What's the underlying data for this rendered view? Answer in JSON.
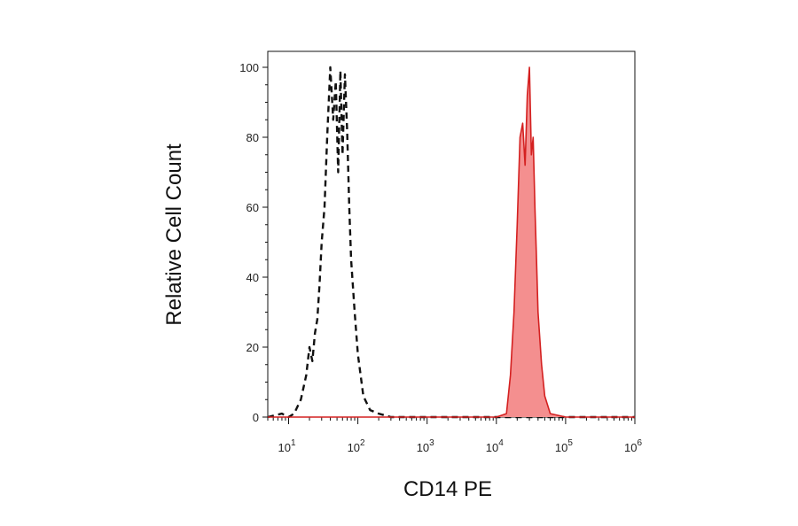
{
  "chart_data": {
    "type": "area",
    "xlabel": "CD14 PE",
    "ylabel": "Relative Cell Count",
    "x_scale": "log",
    "xlim": [
      5,
      1000000
    ],
    "ylim": [
      0,
      100
    ],
    "y_ticks": [
      0,
      20,
      40,
      60,
      80,
      100
    ],
    "x_ticks": [
      {
        "value": 10,
        "base": "10",
        "exp": "1"
      },
      {
        "value": 100,
        "base": "10",
        "exp": "2"
      },
      {
        "value": 1000,
        "base": "10",
        "exp": "3"
      },
      {
        "value": 10000,
        "base": "10",
        "exp": "4"
      },
      {
        "value": 100000,
        "base": "10",
        "exp": "5"
      },
      {
        "value": 1000000,
        "base": "10",
        "exp": "6"
      }
    ],
    "grid": false,
    "series": [
      {
        "style": "dashed",
        "color": "#111111",
        "fill": "none",
        "x": [
          5,
          8,
          10,
          12,
          15,
          18,
          20,
          22,
          24,
          26,
          28,
          30,
          33,
          36,
          40,
          44,
          48,
          52,
          56,
          60,
          65,
          70,
          75,
          80,
          90,
          100,
          120,
          150,
          200,
          300,
          1000,
          10000,
          1000000
        ],
        "y": [
          0,
          1,
          0,
          1,
          5,
          12,
          20,
          16,
          24,
          28,
          38,
          50,
          60,
          80,
          100,
          85,
          96,
          70,
          99,
          75,
          98,
          82,
          60,
          45,
          30,
          18,
          6,
          2,
          1,
          0,
          0,
          0,
          0
        ]
      },
      {
        "style": "solid",
        "color": "#d42020",
        "fill": "#f48f8f",
        "x": [
          5,
          1000,
          10000,
          14000,
          16000,
          18000,
          20000,
          22000,
          24000,
          26000,
          28000,
          30000,
          32000,
          34000,
          36000,
          38000,
          40000,
          45000,
          50000,
          60000,
          100000,
          1000000
        ],
        "y": [
          0,
          0,
          0,
          1,
          12,
          30,
          55,
          80,
          84,
          72,
          92,
          100,
          75,
          80,
          60,
          45,
          30,
          15,
          6,
          1,
          0,
          0
        ]
      }
    ]
  },
  "colors": {
    "axis": "#111111",
    "negative_control": "#111111",
    "stained_line": "#d42020",
    "stained_fill": "#f48f8f"
  }
}
